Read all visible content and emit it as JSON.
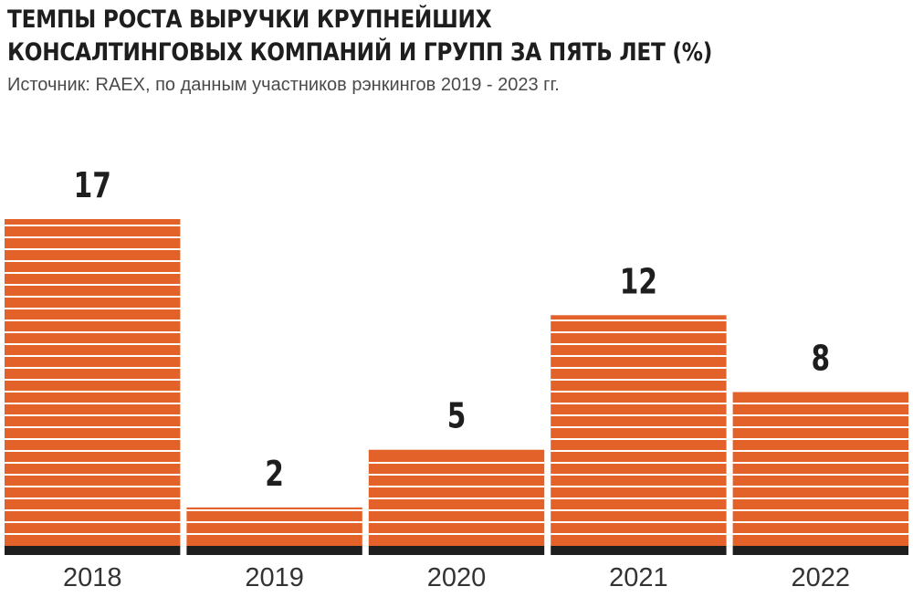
{
  "title_line1": "ТЕМПЫ РОСТА ВЫРУЧКИ КРУПНЕЙШИХ",
  "title_line2": "КОНСАЛТИНГОВЫХ КОМПАНИЙ И ГРУПП ЗА ПЯТЬ ЛЕТ (%)",
  "subtitle": "Источник: RAEX, по данным участников рэнкингов 2019 - 2023 гг.",
  "colors": {
    "bar": "#e2622a",
    "stripe": "#ffffff",
    "baseline": "#1e1e1e",
    "text": "#1e1e1e"
  },
  "chart_data": {
    "type": "bar",
    "categories": [
      "2018",
      "2019",
      "2020",
      "2021",
      "2022"
    ],
    "values": [
      17,
      2,
      5,
      12,
      8
    ],
    "title": "ТЕМПЫ РОСТА ВЫРУЧКИ КРУПНЕЙШИХ КОНСАЛТИНГОВЫХ КОМПАНИЙ И ГРУПП ЗА ПЯТЬ ЛЕТ (%)",
    "xlabel": "",
    "ylabel": "",
    "ylim": [
      0,
      17
    ],
    "grid": false,
    "data_labels": [
      "17",
      "2",
      "5",
      "12",
      "8"
    ]
  }
}
